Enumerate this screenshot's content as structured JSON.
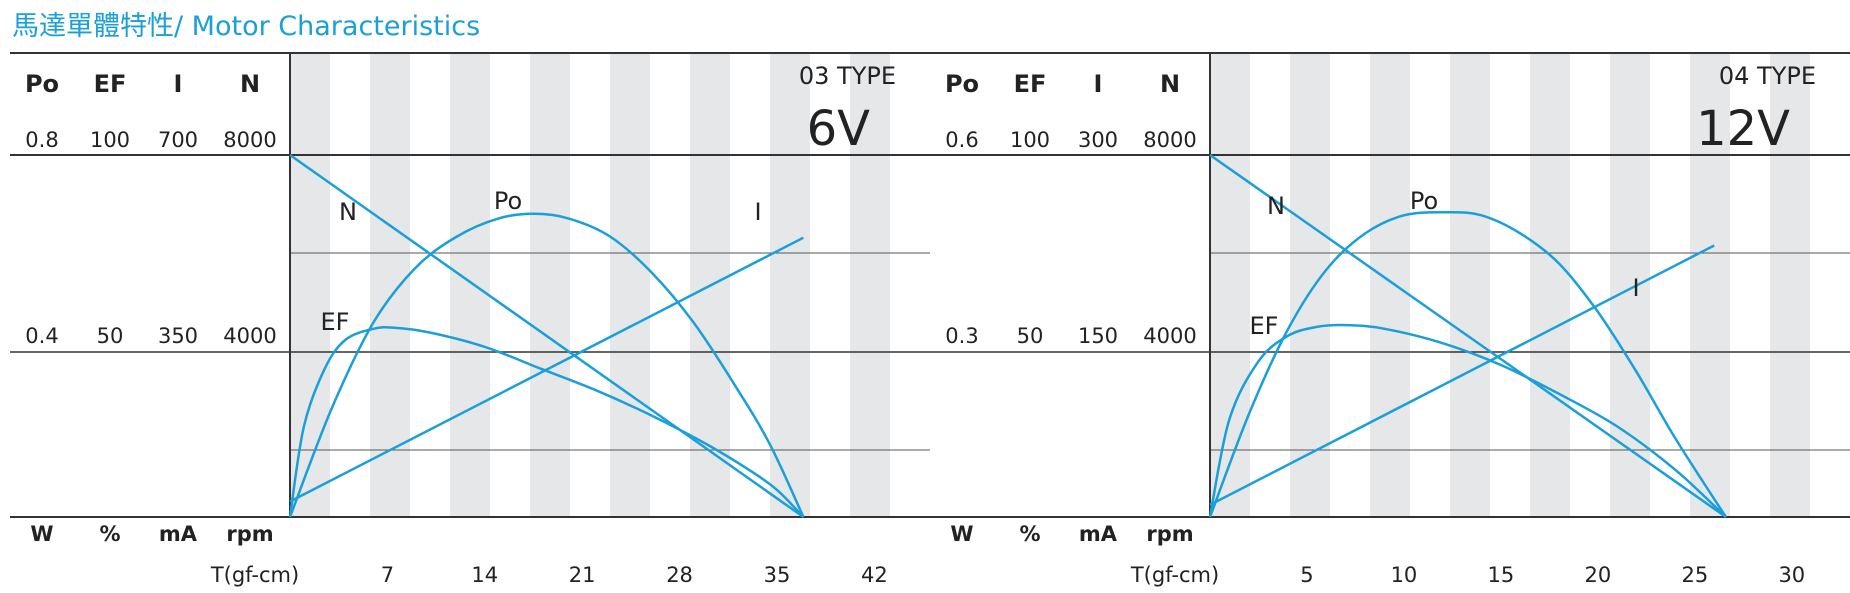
{
  "page": {
    "title": "馬達單體特性/ Motor Characteristics"
  },
  "colors": {
    "curve": "#1a9fd8",
    "stripe": "#e6e7e9",
    "axis": "#333333",
    "text": "#222222"
  },
  "chart_data": [
    {
      "type": "line",
      "model": "03 TYPE",
      "voltage": "6V",
      "xlabel": "T(gf-cm)",
      "xlim": [
        0,
        46
      ],
      "xticks": [
        "7",
        "14",
        "21",
        "28",
        "35",
        "42"
      ],
      "grid": true,
      "axes": [
        {
          "name": "Po",
          "unit": "W",
          "max": "0.8",
          "mid": "0.4"
        },
        {
          "name": "EF",
          "unit": "%",
          "max": "100",
          "mid": "50"
        },
        {
          "name": "I",
          "unit": "mA",
          "max": "700",
          "mid": "350"
        },
        {
          "name": "N",
          "unit": "rpm",
          "max": "8000",
          "mid": "4000"
        }
      ],
      "series": [
        {
          "name": "N",
          "axis": 3,
          "points": [
            [
              0,
              8000
            ],
            [
              36.9,
              0
            ]
          ]
        },
        {
          "name": "I",
          "axis": 2,
          "points": [
            [
              0,
              30
            ],
            [
              36.9,
              540
            ]
          ]
        },
        {
          "name": "Po",
          "axis": 0,
          "points": [
            [
              0,
              0
            ],
            [
              3,
              0.24
            ],
            [
              6,
              0.43
            ],
            [
              9,
              0.55
            ],
            [
              12,
              0.62
            ],
            [
              15,
              0.66
            ],
            [
              17.5,
              0.67
            ],
            [
              20,
              0.66
            ],
            [
              23,
              0.62
            ],
            [
              26,
              0.54
            ],
            [
              29,
              0.43
            ],
            [
              32,
              0.29
            ],
            [
              34.5,
              0.16
            ],
            [
              36.9,
              0
            ]
          ]
        },
        {
          "name": "EF",
          "axis": 1,
          "points": [
            [
              0,
              0
            ],
            [
              1,
              25
            ],
            [
              2.5,
              41
            ],
            [
              4,
              49
            ],
            [
              6,
              52
            ],
            [
              7.5,
              52.3
            ],
            [
              10,
              51
            ],
            [
              14,
              47
            ],
            [
              18,
              41
            ],
            [
              22,
              35
            ],
            [
              26,
              28
            ],
            [
              30,
              20
            ],
            [
              33,
              13
            ],
            [
              35,
              7.5
            ],
            [
              36.9,
              0
            ]
          ]
        }
      ]
    },
    {
      "type": "line",
      "model": "04 TYPE",
      "voltage": "12V",
      "xlabel": "T(gf-cm)",
      "xlim": [
        0,
        33
      ],
      "xticks": [
        "5",
        "10",
        "15",
        "20",
        "25",
        "30"
      ],
      "grid": true,
      "axes": [
        {
          "name": "Po",
          "unit": "W",
          "max": "0.6",
          "mid": "0.3"
        },
        {
          "name": "EF",
          "unit": "%",
          "max": "100",
          "mid": "50"
        },
        {
          "name": "I",
          "unit": "mA",
          "max": "300",
          "mid": "150"
        },
        {
          "name": "N",
          "unit": "rpm",
          "max": "8000",
          "mid": "4000"
        }
      ],
      "series": [
        {
          "name": "N",
          "axis": 3,
          "points": [
            [
              0,
              8000
            ],
            [
              26.6,
              0
            ]
          ]
        },
        {
          "name": "I",
          "axis": 2,
          "points": [
            [
              0,
              10
            ],
            [
              26,
              225
            ]
          ]
        },
        {
          "name": "Po",
          "axis": 0,
          "points": [
            [
              0,
              0
            ],
            [
              2,
              0.17
            ],
            [
              4,
              0.31
            ],
            [
              6,
              0.41
            ],
            [
              8,
              0.47
            ],
            [
              10,
              0.5
            ],
            [
              12.2,
              0.505
            ],
            [
              14,
              0.5
            ],
            [
              16,
              0.47
            ],
            [
              18,
              0.42
            ],
            [
              20,
              0.34
            ],
            [
              22,
              0.24
            ],
            [
              24,
              0.13
            ],
            [
              26.6,
              0
            ]
          ]
        },
        {
          "name": "EF",
          "axis": 1,
          "points": [
            [
              0,
              0
            ],
            [
              1,
              27
            ],
            [
              2.5,
              43
            ],
            [
              4,
              50
            ],
            [
              5.5,
              52.5
            ],
            [
              7,
              53
            ],
            [
              9,
              52
            ],
            [
              12,
              48
            ],
            [
              15,
              42
            ],
            [
              18,
              34
            ],
            [
              21,
              25
            ],
            [
              24,
              13
            ],
            [
              26.6,
              0
            ]
          ]
        }
      ]
    }
  ]
}
